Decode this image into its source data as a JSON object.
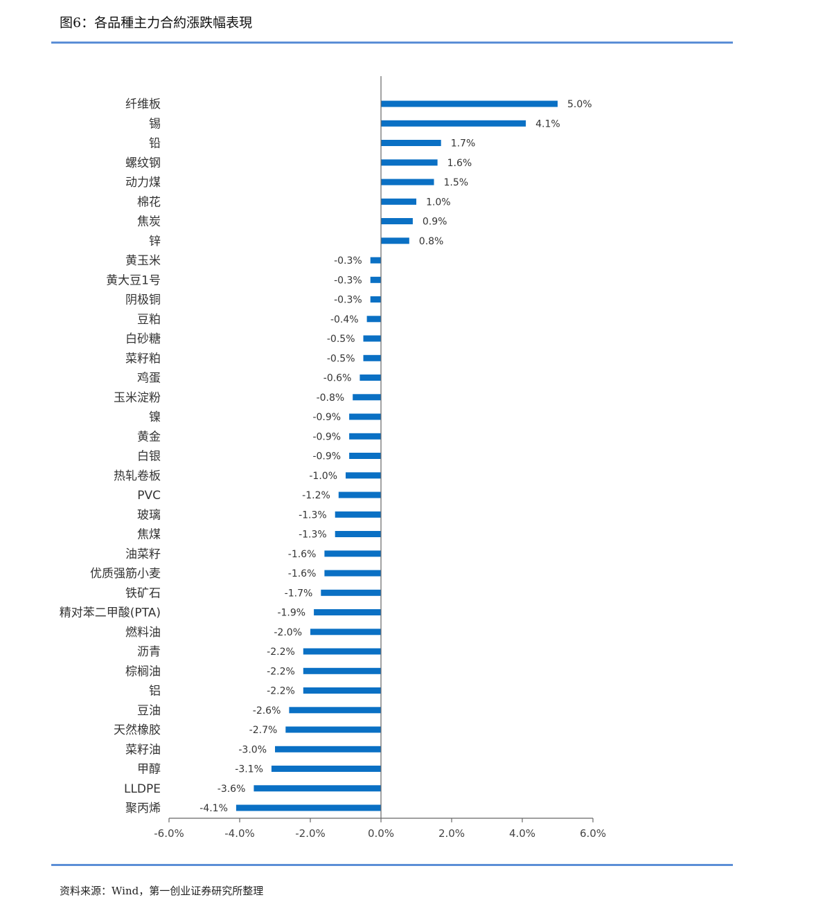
{
  "figure": {
    "title": "图6：各品種主力合約漲跌幅表現",
    "source": "资料来源：Wind，第一创业证券研究所整理"
  },
  "colors": {
    "bar": "#0a70c4",
    "axis": "#666666",
    "rule": "#5b8ed6"
  },
  "chart_data": {
    "type": "bar",
    "orientation": "horizontal",
    "categories": [
      "纤维板",
      "锡",
      "铅",
      "螺纹钢",
      "动力煤",
      "棉花",
      "焦炭",
      "锌",
      "黄玉米",
      "黄大豆1号",
      "阴极铜",
      "豆粕",
      "白砂糖",
      "菜籽粕",
      "鸡蛋",
      "玉米淀粉",
      "镍",
      "黄金",
      "白银",
      "热轧卷板",
      "PVC",
      "玻璃",
      "焦煤",
      "油菜籽",
      "优质强筋小麦",
      "铁矿石",
      "精对苯二甲酸(PTA)",
      "燃料油",
      "沥青",
      "棕榈油",
      "铝",
      "豆油",
      "天然橡胶",
      "菜籽油",
      "甲醇",
      "LLDPE",
      "聚丙烯"
    ],
    "values": [
      5.0,
      4.1,
      1.7,
      1.6,
      1.5,
      1.0,
      0.9,
      0.8,
      -0.3,
      -0.3,
      -0.3,
      -0.4,
      -0.5,
      -0.5,
      -0.6,
      -0.8,
      -0.9,
      -0.9,
      -0.9,
      -1.0,
      -1.2,
      -1.3,
      -1.3,
      -1.6,
      -1.6,
      -1.7,
      -1.9,
      -2.0,
      -2.2,
      -2.2,
      -2.2,
      -2.6,
      -2.7,
      -3.0,
      -3.1,
      -3.6,
      -4.1
    ],
    "value_labels": [
      "5.0%",
      "4.1%",
      "1.7%",
      "1.6%",
      "1.5%",
      "1.0%",
      "0.9%",
      "0.8%",
      "-0.3%",
      "-0.3%",
      "-0.3%",
      "-0.4%",
      "-0.5%",
      "-0.5%",
      "-0.6%",
      "-0.8%",
      "-0.9%",
      "-0.9%",
      "-0.9%",
      "-1.0%",
      "-1.2%",
      "-1.3%",
      "-1.3%",
      "-1.6%",
      "-1.6%",
      "-1.7%",
      "-1.9%",
      "-2.0%",
      "-2.2%",
      "-2.2%",
      "-2.2%",
      "-2.6%",
      "-2.7%",
      "-3.0%",
      "-3.1%",
      "-3.6%",
      "-4.1%"
    ],
    "xlim": [
      -6.0,
      6.0
    ],
    "xticks": [
      -6.0,
      -4.0,
      -2.0,
      0.0,
      2.0,
      4.0,
      6.0
    ],
    "xtick_labels": [
      "-6.0%",
      "-4.0%",
      "-2.0%",
      "0.0%",
      "2.0%",
      "4.0%",
      "6.0%"
    ],
    "grid": false,
    "legend": "none"
  }
}
